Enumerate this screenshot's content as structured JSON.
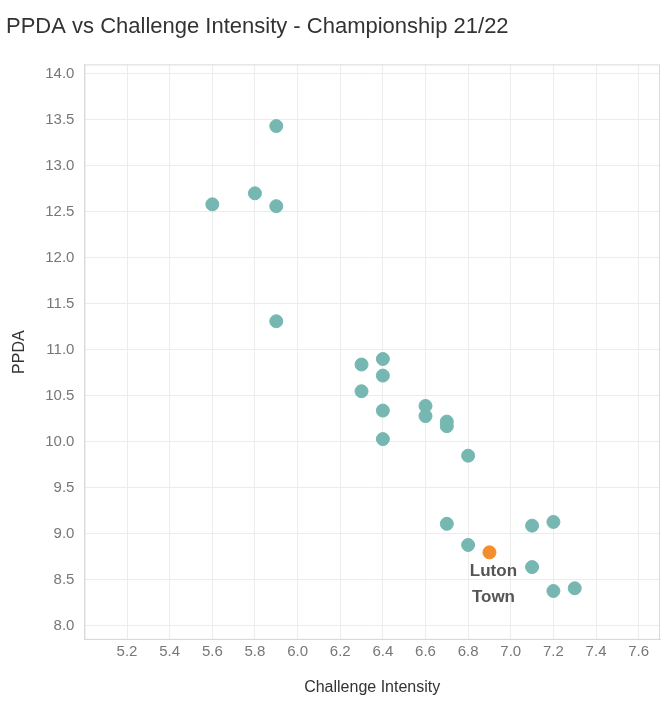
{
  "chart_data": {
    "type": "scatter",
    "title": "PPDA vs Challenge Intensity - Championship 21/22",
    "x_label": "Challenge Intensity",
    "y_label": "PPDA",
    "x": [
      5.9,
      5.8,
      5.6,
      5.9,
      5.9,
      6.3,
      6.4,
      6.4,
      6.3,
      6.4,
      6.4,
      6.6,
      6.6,
      6.7,
      6.7,
      6.8,
      6.7,
      6.8,
      6.9,
      7.1,
      7.2,
      7.1,
      7.2,
      7.3
    ],
    "values": [
      13.43,
      12.7,
      12.58,
      12.56,
      11.31,
      10.84,
      10.9,
      10.72,
      10.55,
      10.34,
      10.03,
      10.39,
      10.28,
      10.22,
      10.17,
      9.85,
      9.11,
      8.88,
      8.8,
      9.09,
      9.13,
      8.64,
      8.38,
      8.41
    ],
    "colors": [
      "#76b7b2",
      "#76b7b2",
      "#76b7b2",
      "#76b7b2",
      "#76b7b2",
      "#76b7b2",
      "#76b7b2",
      "#76b7b2",
      "#76b7b2",
      "#76b7b2",
      "#76b7b2",
      "#76b7b2",
      "#76b7b2",
      "#76b7b2",
      "#76b7b2",
      "#76b7b2",
      "#76b7b2",
      "#76b7b2",
      "#f28e2b",
      "#76b7b2",
      "#76b7b2",
      "#76b7b2",
      "#76b7b2",
      "#76b7b2"
    ],
    "annotations": [
      {
        "text": "Luton Town",
        "x": 6.9,
        "y": 8.8
      }
    ],
    "xlim": [
      5.0,
      7.7
    ],
    "xticks": [
      5.2,
      5.4,
      5.6,
      5.8,
      {
        "value": 6,
        "label": "6.0"
      },
      6.2,
      6.4,
      6.6,
      6.8,
      {
        "value": 7,
        "label": "7.0"
      },
      7.2,
      7.4,
      7.6
    ],
    "ylim": [
      7.85,
      14.1
    ],
    "yticks": [
      {
        "value": 8,
        "label": "8.0"
      },
      8.5,
      {
        "value": 9,
        "label": "9.0"
      },
      9.5,
      {
        "value": 10,
        "label": "10.0"
      },
      10.5,
      {
        "value": 11,
        "label": "11.0"
      },
      11.5,
      {
        "value": 12,
        "label": "12.0"
      },
      12.5,
      {
        "value": 13,
        "label": "13.0"
      },
      13.5,
      {
        "value": 14,
        "label": "14.0"
      }
    ],
    "grid": true,
    "marker": "circle"
  }
}
